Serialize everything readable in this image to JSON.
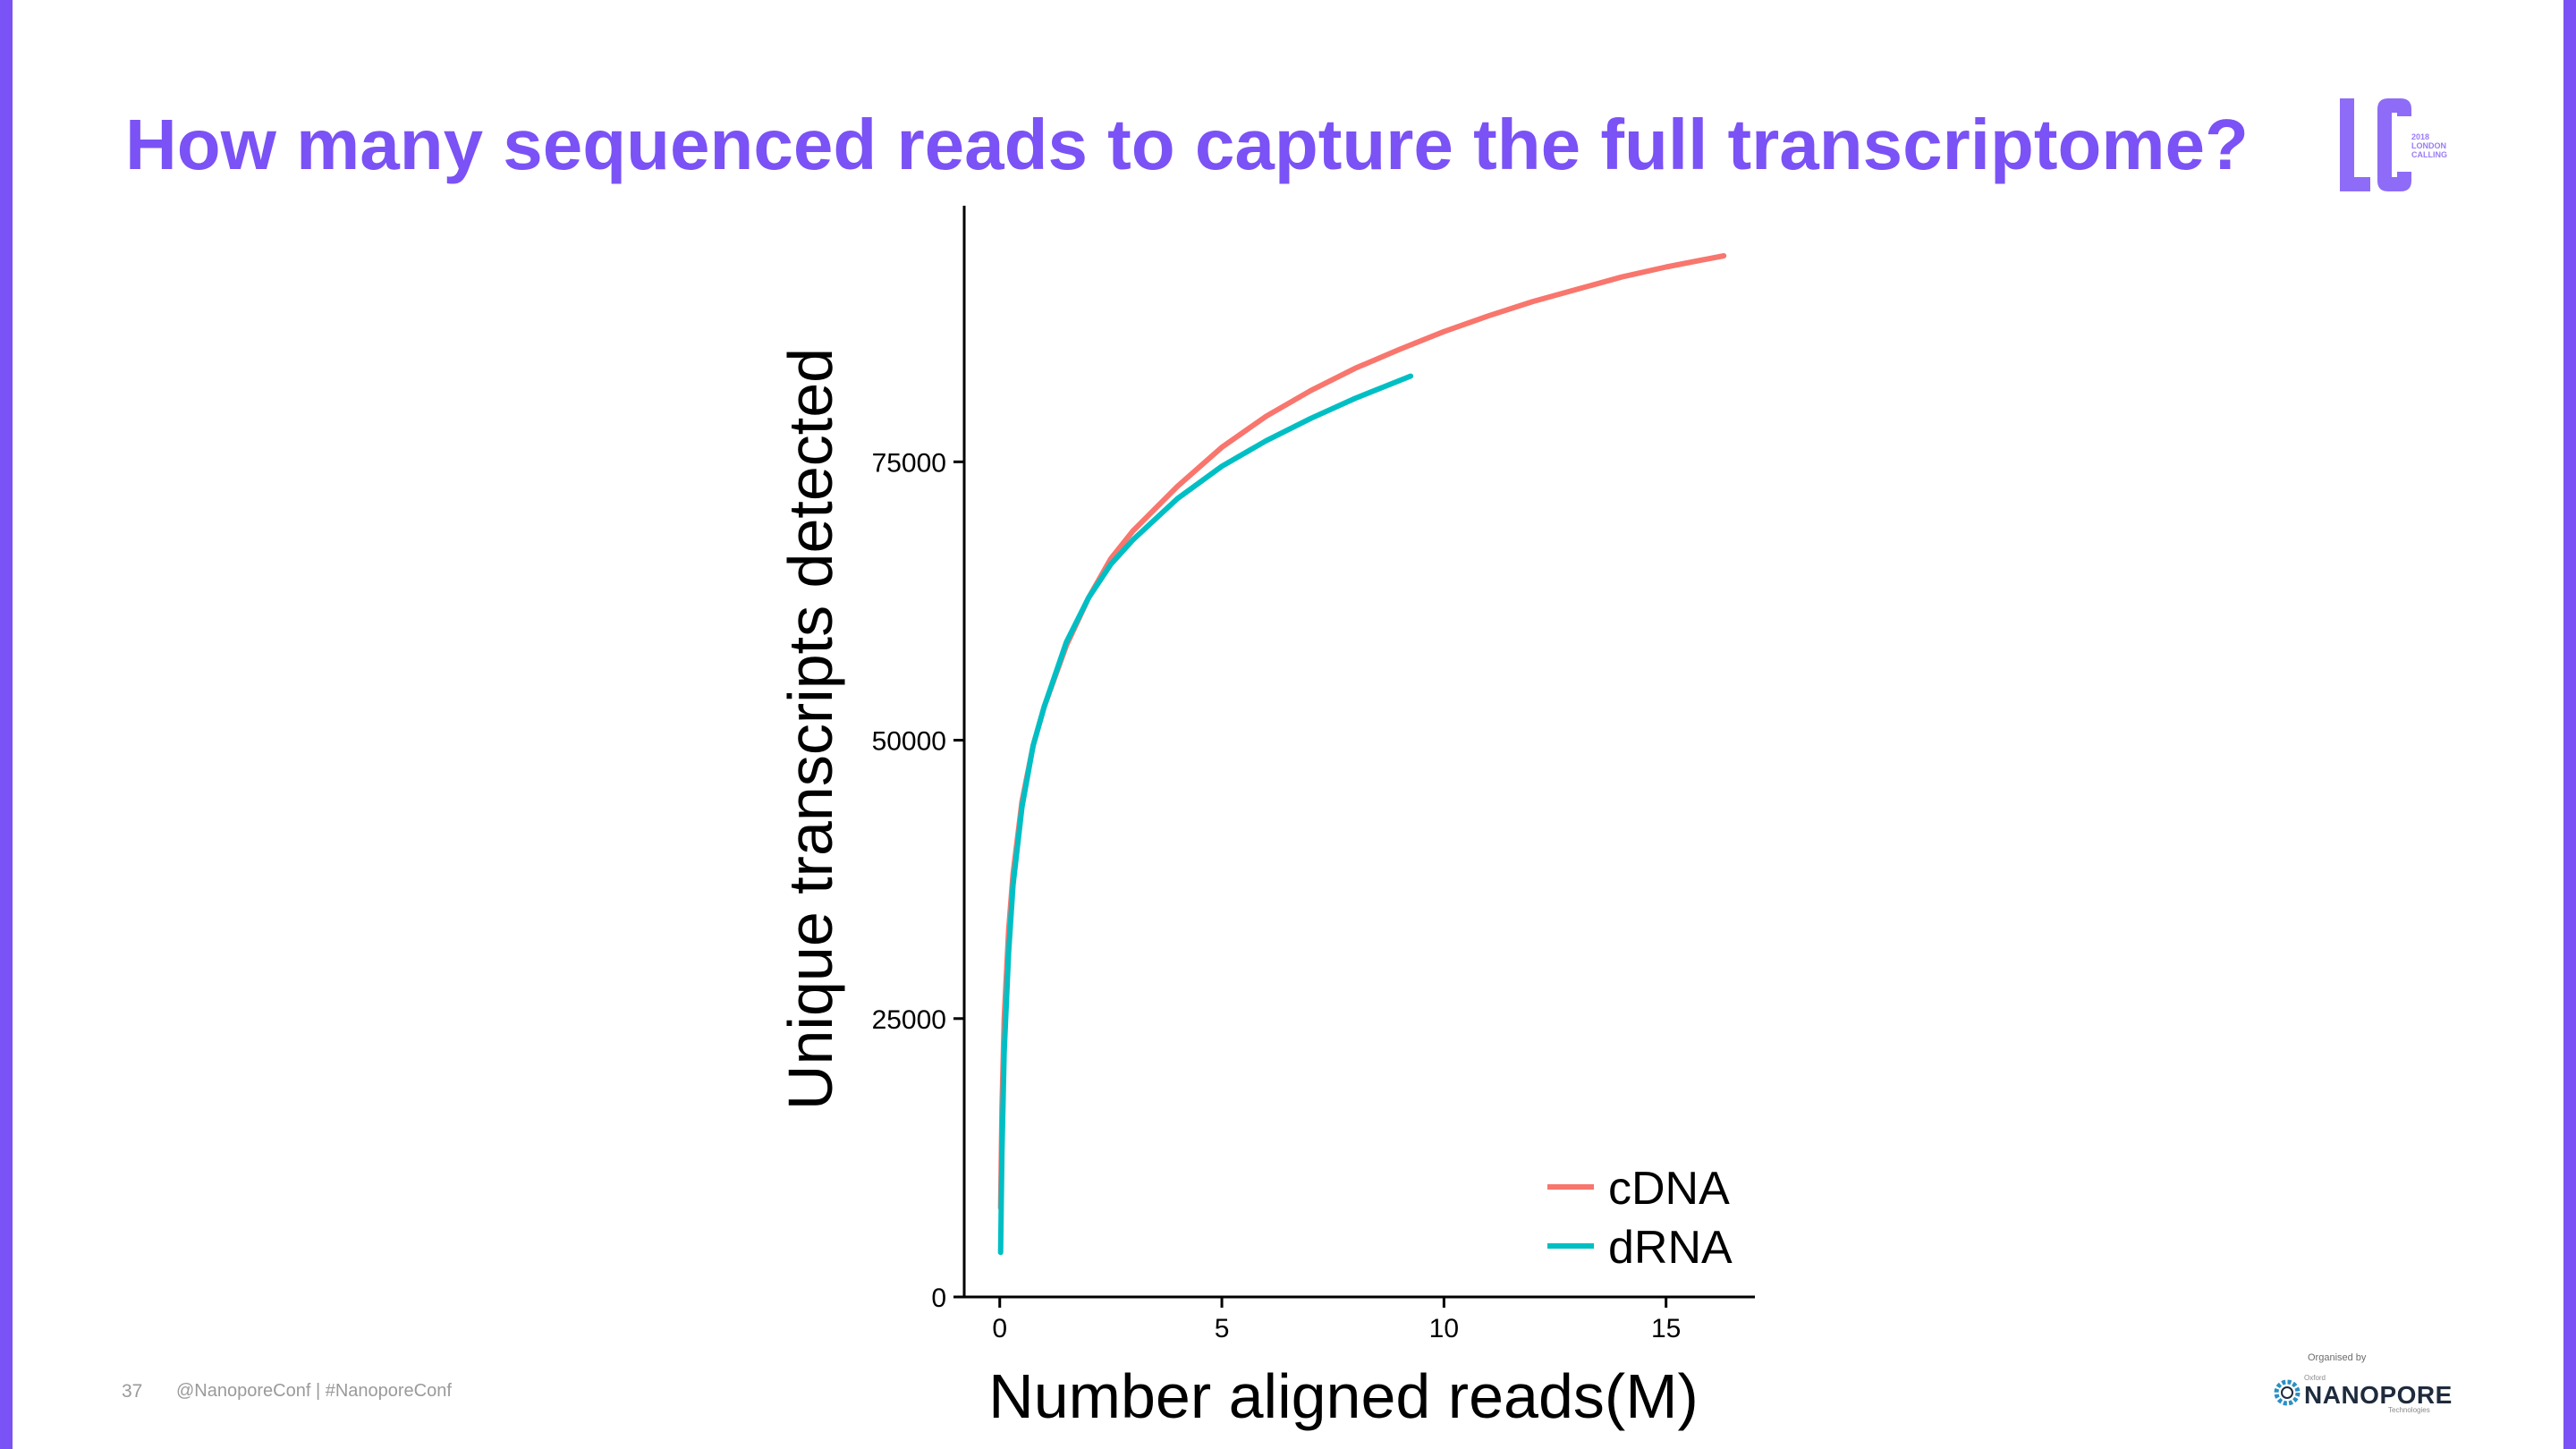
{
  "slide": {
    "title": "How many sequenced reads to capture the full transcriptome?",
    "page_number": "37",
    "handle": "@NanoporeConf | #NanoporeConf"
  },
  "logo": {
    "letters": "LC",
    "caption_lines": [
      "2018",
      "LONDON",
      "CALLING"
    ]
  },
  "organiser": {
    "caption": "Organised by",
    "small": "Oxford",
    "brand": "NANOPORE",
    "sub": "Technologies"
  },
  "colors": {
    "accent": "#7b52f5",
    "cdna": "#f8766d",
    "drna": "#00bfc4"
  },
  "chart_data": {
    "type": "line",
    "title": "",
    "xlabel": "Number aligned reads(M)",
    "ylabel": "Unique transcripts detected",
    "xlim": [
      -0.8,
      17
    ],
    "ylim": [
      0,
      98000
    ],
    "x_ticks": [
      0,
      5,
      10,
      15
    ],
    "y_ticks": [
      0,
      25000,
      50000,
      75000
    ],
    "x_tick_labels": [
      "0",
      "5",
      "10",
      "15"
    ],
    "y_tick_labels": [
      "0",
      "25000",
      "50000",
      "75000"
    ],
    "grid": false,
    "legend_position": "bottom-right",
    "series": [
      {
        "name": "cDNA",
        "color": "#f8766d",
        "x": [
          0.02,
          0.05,
          0.1,
          0.2,
          0.3,
          0.5,
          0.75,
          1,
          1.5,
          2,
          2.5,
          3,
          4,
          5,
          6,
          7,
          8,
          9,
          10,
          11,
          12,
          13,
          14,
          15,
          16.3
        ],
        "y": [
          8000,
          17000,
          25000,
          33000,
          38000,
          44500,
          49500,
          53000,
          58500,
          62800,
          66300,
          68800,
          72800,
          76300,
          79100,
          81400,
          83400,
          85100,
          86700,
          88100,
          89400,
          90500,
          91600,
          92500,
          93500
        ]
      },
      {
        "name": "dRNA",
        "color": "#00bfc4",
        "x": [
          0.02,
          0.05,
          0.1,
          0.2,
          0.3,
          0.5,
          0.75,
          1,
          1.5,
          2,
          2.5,
          3,
          4,
          5,
          6,
          7,
          8,
          9.25
        ],
        "y": [
          4000,
          13000,
          22000,
          31000,
          37000,
          44000,
          49500,
          53000,
          58800,
          62800,
          65800,
          68000,
          71700,
          74600,
          76900,
          78900,
          80700,
          82700
        ]
      }
    ]
  }
}
